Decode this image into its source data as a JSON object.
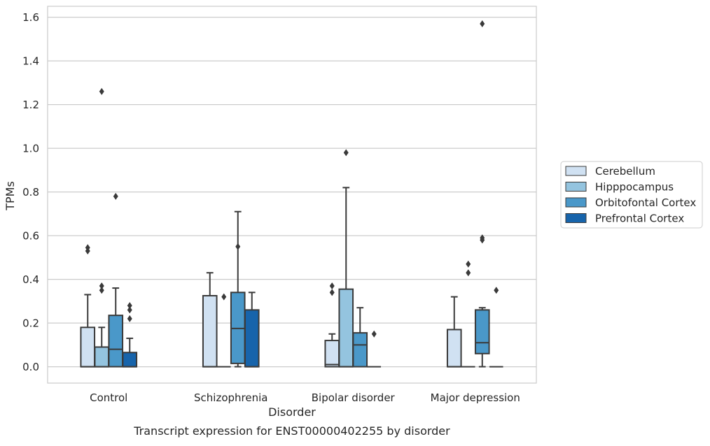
{
  "chart_data": {
    "type": "box",
    "title": "Transcript expression for ENST00000402255 by disorder",
    "xlabel": "Disorder",
    "ylabel": "TPMs",
    "ylim": [
      -0.075,
      1.65
    ],
    "yticks": [
      0.0,
      0.2,
      0.4,
      0.6,
      0.8,
      1.0,
      1.2,
      1.4,
      1.6
    ],
    "ytick_labels": [
      "0.0",
      "0.2",
      "0.4",
      "0.6",
      "0.8",
      "1.0",
      "1.2",
      "1.4",
      "1.6"
    ],
    "grid": "horizontal",
    "legend_position": "right",
    "categories": [
      "Control",
      "Schizophrenia",
      "Bipolar disorder",
      "Major depression"
    ],
    "series": [
      {
        "name": "Cerebellum",
        "color": "#d0e1f2",
        "boxes": [
          {
            "q1": 0.0,
            "median": 0.0,
            "q3": 0.18,
            "whisker_low": 0.0,
            "whisker_high": 0.33,
            "outliers": [
              0.53,
              0.545
            ]
          },
          {
            "q1": 0.0,
            "median": 0.0,
            "q3": 0.325,
            "whisker_low": 0.0,
            "whisker_high": 0.43,
            "outliers": []
          },
          {
            "q1": 0.0,
            "median": 0.01,
            "q3": 0.12,
            "whisker_low": 0.0,
            "whisker_high": 0.15,
            "outliers": [
              0.34,
              0.37
            ]
          },
          {
            "q1": 0.0,
            "median": 0.0,
            "q3": 0.17,
            "whisker_low": 0.0,
            "whisker_high": 0.32,
            "outliers": []
          }
        ]
      },
      {
        "name": "Hipppocampus",
        "color": "#94c4df",
        "boxes": [
          {
            "q1": 0.0,
            "median": 0.0,
            "q3": 0.09,
            "whisker_low": 0.0,
            "whisker_high": 0.18,
            "outliers": [
              0.35,
              0.37,
              1.26
            ]
          },
          {
            "q1": 0.0,
            "median": 0.0,
            "q3": 0.0,
            "whisker_low": 0.0,
            "whisker_high": 0.0,
            "outliers": [
              0.32
            ]
          },
          {
            "q1": 0.0,
            "median": 0.0,
            "q3": 0.355,
            "whisker_low": 0.0,
            "whisker_high": 0.82,
            "outliers": [
              0.98
            ]
          },
          {
            "q1": 0.0,
            "median": 0.0,
            "q3": 0.0,
            "whisker_low": 0.0,
            "whisker_high": 0.0,
            "outliers": [
              0.43,
              0.47
            ]
          }
        ]
      },
      {
        "name": "Orbitofontal Cortex",
        "color": "#4a98c9",
        "boxes": [
          {
            "q1": 0.0,
            "median": 0.08,
            "q3": 0.235,
            "whisker_low": 0.0,
            "whisker_high": 0.36,
            "outliers": [
              0.78
            ]
          },
          {
            "q1": 0.015,
            "median": 0.175,
            "q3": 0.34,
            "whisker_low": 0.0,
            "whisker_high": 0.71,
            "outliers": [
              0.55
            ]
          },
          {
            "q1": 0.0,
            "median": 0.1,
            "q3": 0.155,
            "whisker_low": 0.0,
            "whisker_high": 0.27,
            "outliers": []
          },
          {
            "q1": 0.06,
            "median": 0.11,
            "q3": 0.26,
            "whisker_low": 0.0,
            "whisker_high": 0.27,
            "outliers": [
              0.58,
              0.59,
              1.57
            ]
          }
        ]
      },
      {
        "name": "Prefrontal Cortex",
        "color": "#1764ab",
        "boxes": [
          {
            "q1": 0.0,
            "median": 0.0,
            "q3": 0.065,
            "whisker_low": 0.0,
            "whisker_high": 0.13,
            "outliers": [
              0.22,
              0.26,
              0.28
            ]
          },
          {
            "q1": 0.0,
            "median": 0.0,
            "q3": 0.26,
            "whisker_low": 0.0,
            "whisker_high": 0.34,
            "outliers": []
          },
          {
            "q1": 0.0,
            "median": 0.0,
            "q3": 0.0,
            "whisker_low": 0.0,
            "whisker_high": 0.0,
            "outliers": [
              0.15
            ]
          },
          {
            "q1": 0.0,
            "median": 0.0,
            "q3": 0.0,
            "whisker_low": 0.0,
            "whisker_high": 0.0,
            "outliers": [
              0.35
            ]
          }
        ]
      }
    ]
  }
}
